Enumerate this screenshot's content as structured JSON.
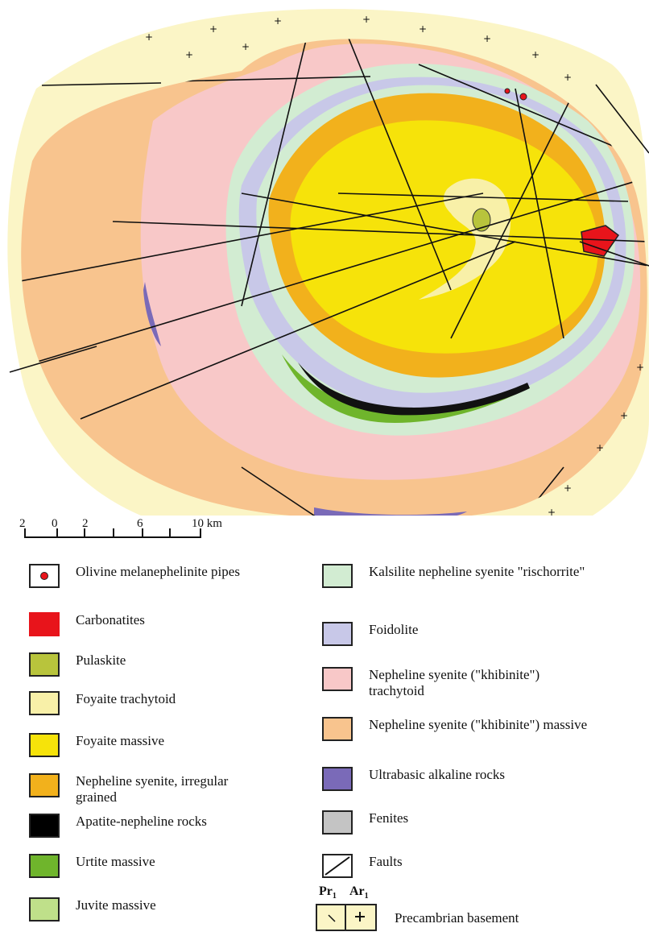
{
  "scale": {
    "labels": [
      "2",
      "0",
      "2",
      "6",
      "10 km"
    ]
  },
  "legend": {
    "left": [
      {
        "label": "Olivine melanephelinite pipes",
        "icon": "olivine-melanephelinite-pipe-swatch",
        "color": "#ffffff"
      },
      {
        "label": "Carbonatites",
        "icon": "carbonatite-swatch",
        "color": "#e8141b"
      },
      {
        "label": "Pulaskite",
        "icon": "pulaskite-swatch",
        "color": "#b8c43c"
      },
      {
        "label": "Foyaite trachytoid",
        "icon": "foyaite-trachytoid-swatch",
        "color": "#f8f0a8"
      },
      {
        "label": "Foyaite massive",
        "icon": "foyaite-massive-swatch",
        "color": "#f6e30a"
      },
      {
        "label": "Nepheline syenite, irregular grained",
        "icon": "nepheline-syenite-irregular-swatch",
        "color": "#f2b11c"
      },
      {
        "label": "Apatite-nepheline rocks",
        "icon": "apatite-nepheline-swatch",
        "color": "#000000"
      },
      {
        "label": "Urtite massive",
        "icon": "urtite-massive-swatch",
        "color": "#6fb52c"
      },
      {
        "label": "Juvite massive",
        "icon": "juvite-massive-swatch",
        "color": "#bfe08a"
      }
    ],
    "right": [
      {
        "label": "Kalsilite nepheline syenite \"rischorrite\"",
        "icon": "kalsilite-nepheline-syenite-swatch",
        "color": "#d2ecd2"
      },
      {
        "label": "Foidolite",
        "icon": "foidolite-swatch",
        "color": "#c8c8e8"
      },
      {
        "label": "Nepheline syenite (\"khibinite\") trachytoid",
        "icon": "khibinite-trachytoid-swatch",
        "color": "#f8c8c8"
      },
      {
        "label": "Nepheline syenite (\"khibinite\") massive",
        "icon": "khibinite-massive-swatch",
        "color": "#f8c48e"
      },
      {
        "label": "Ultrabasic alkaline rocks",
        "icon": "ultrabasic-alkaline-swatch",
        "color": "#7a6ab8"
      },
      {
        "label": "Fenites",
        "icon": "fenite-swatch",
        "color": "#c4c4c4"
      },
      {
        "label": "Faults",
        "icon": "fault-swatch",
        "color": "#ffffff"
      }
    ],
    "basement": {
      "left_symbol": "Pr",
      "left_sub": "1",
      "right_symbol": "Ar",
      "right_sub": "1",
      "label": "Precambrian basement",
      "color": "#fbf5c6"
    }
  }
}
